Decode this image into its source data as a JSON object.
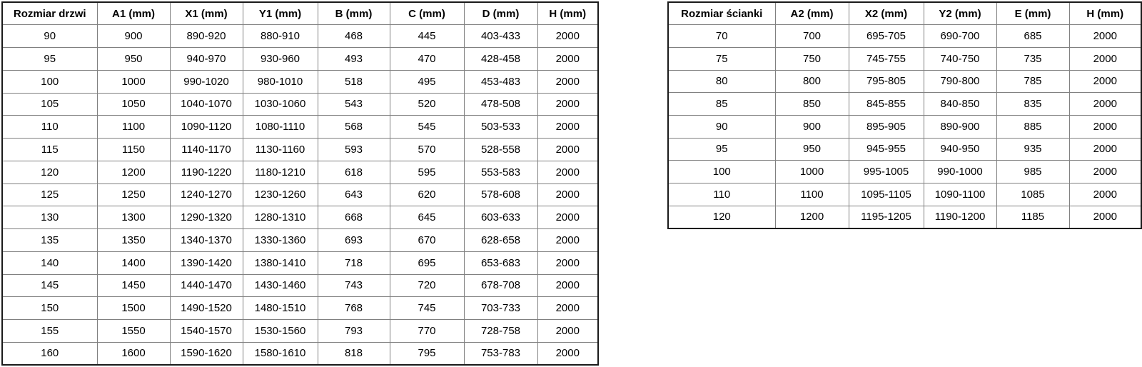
{
  "document": {
    "background": "#ffffff",
    "text_color": "#000000",
    "border_inner_color": "#808080",
    "border_outer_color": "#1a1a1a"
  },
  "tables": [
    {
      "name": "door-size-table",
      "headers": [
        "Rozmiar drzwi",
        "A1 (mm)",
        "X1 (mm)",
        "Y1 (mm)",
        "B (mm)",
        "C (mm)",
        "D (mm)",
        "H (mm)"
      ],
      "rows": [
        [
          "90",
          "900",
          "890-920",
          "880-910",
          "468",
          "445",
          "403-433",
          "2000"
        ],
        [
          "95",
          "950",
          "940-970",
          "930-960",
          "493",
          "470",
          "428-458",
          "2000"
        ],
        [
          "100",
          "1000",
          "990-1020",
          "980-1010",
          "518",
          "495",
          "453-483",
          "2000"
        ],
        [
          "105",
          "1050",
          "1040-1070",
          "1030-1060",
          "543",
          "520",
          "478-508",
          "2000"
        ],
        [
          "110",
          "1100",
          "1090-1120",
          "1080-1110",
          "568",
          "545",
          "503-533",
          "2000"
        ],
        [
          "115",
          "1150",
          "1140-1170",
          "1130-1160",
          "593",
          "570",
          "528-558",
          "2000"
        ],
        [
          "120",
          "1200",
          "1190-1220",
          "1180-1210",
          "618",
          "595",
          "553-583",
          "2000"
        ],
        [
          "125",
          "1250",
          "1240-1270",
          "1230-1260",
          "643",
          "620",
          "578-608",
          "2000"
        ],
        [
          "130",
          "1300",
          "1290-1320",
          "1280-1310",
          "668",
          "645",
          "603-633",
          "2000"
        ],
        [
          "135",
          "1350",
          "1340-1370",
          "1330-1360",
          "693",
          "670",
          "628-658",
          "2000"
        ],
        [
          "140",
          "1400",
          "1390-1420",
          "1380-1410",
          "718",
          "695",
          "653-683",
          "2000"
        ],
        [
          "145",
          "1450",
          "1440-1470",
          "1430-1460",
          "743",
          "720",
          "678-708",
          "2000"
        ],
        [
          "150",
          "1500",
          "1490-1520",
          "1480-1510",
          "768",
          "745",
          "703-733",
          "2000"
        ],
        [
          "155",
          "1550",
          "1540-1570",
          "1530-1560",
          "793",
          "770",
          "728-758",
          "2000"
        ],
        [
          "160",
          "1600",
          "1590-1620",
          "1580-1610",
          "818",
          "795",
          "753-783",
          "2000"
        ]
      ]
    },
    {
      "name": "wall-size-table",
      "headers": [
        "Rozmiar ścianki",
        "A2 (mm)",
        "X2 (mm)",
        "Y2 (mm)",
        "E (mm)",
        "H (mm)"
      ],
      "rows": [
        [
          "70",
          "700",
          "695-705",
          "690-700",
          "685",
          "2000"
        ],
        [
          "75",
          "750",
          "745-755",
          "740-750",
          "735",
          "2000"
        ],
        [
          "80",
          "800",
          "795-805",
          "790-800",
          "785",
          "2000"
        ],
        [
          "85",
          "850",
          "845-855",
          "840-850",
          "835",
          "2000"
        ],
        [
          "90",
          "900",
          "895-905",
          "890-900",
          "885",
          "2000"
        ],
        [
          "95",
          "950",
          "945-955",
          "940-950",
          "935",
          "2000"
        ],
        [
          "100",
          "1000",
          "995-1005",
          "990-1000",
          "985",
          "2000"
        ],
        [
          "110",
          "1100",
          "1095-1105",
          "1090-1100",
          "1085",
          "2000"
        ],
        [
          "120",
          "1200",
          "1195-1205",
          "1190-1200",
          "1185",
          "2000"
        ]
      ]
    }
  ]
}
